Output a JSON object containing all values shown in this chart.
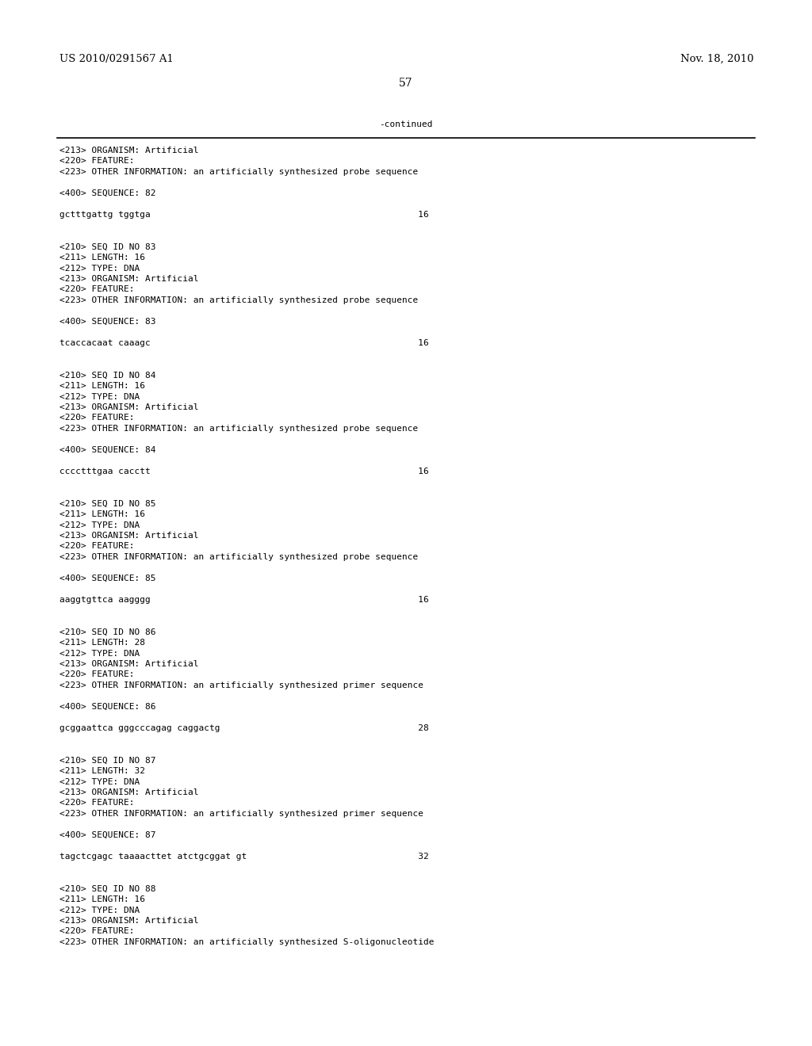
{
  "header_left": "US 2010/0291567 A1",
  "header_right": "Nov. 18, 2010",
  "page_number": "57",
  "continued_label": "-continued",
  "background_color": "#ffffff",
  "text_color": "#000000",
  "font_size_header": 9.5,
  "font_size_body": 8.0,
  "font_size_page": 10.0,
  "lines": [
    "<213> ORGANISM: Artificial",
    "<220> FEATURE:",
    "<223> OTHER INFORMATION: an artificially synthesized probe sequence",
    "",
    "<400> SEQUENCE: 82",
    "",
    "gctttgattg tggtga                                                  16",
    "",
    "",
    "<210> SEQ ID NO 83",
    "<211> LENGTH: 16",
    "<212> TYPE: DNA",
    "<213> ORGANISM: Artificial",
    "<220> FEATURE:",
    "<223> OTHER INFORMATION: an artificially synthesized probe sequence",
    "",
    "<400> SEQUENCE: 83",
    "",
    "tcaccacaat caaagc                                                  16",
    "",
    "",
    "<210> SEQ ID NO 84",
    "<211> LENGTH: 16",
    "<212> TYPE: DNA",
    "<213> ORGANISM: Artificial",
    "<220> FEATURE:",
    "<223> OTHER INFORMATION: an artificially synthesized probe sequence",
    "",
    "<400> SEQUENCE: 84",
    "",
    "cccctttgaa cacctt                                                  16",
    "",
    "",
    "<210> SEQ ID NO 85",
    "<211> LENGTH: 16",
    "<212> TYPE: DNA",
    "<213> ORGANISM: Artificial",
    "<220> FEATURE:",
    "<223> OTHER INFORMATION: an artificially synthesized probe sequence",
    "",
    "<400> SEQUENCE: 85",
    "",
    "aaggtgttca aagggg                                                  16",
    "",
    "",
    "<210> SEQ ID NO 86",
    "<211> LENGTH: 28",
    "<212> TYPE: DNA",
    "<213> ORGANISM: Artificial",
    "<220> FEATURE:",
    "<223> OTHER INFORMATION: an artificially synthesized primer sequence",
    "",
    "<400> SEQUENCE: 86",
    "",
    "gcggaattca gggcccagag caggactg                                     28",
    "",
    "",
    "<210> SEQ ID NO 87",
    "<211> LENGTH: 32",
    "<212> TYPE: DNA",
    "<213> ORGANISM: Artificial",
    "<220> FEATURE:",
    "<223> OTHER INFORMATION: an artificially synthesized primer sequence",
    "",
    "<400> SEQUENCE: 87",
    "",
    "tagctcgagc taaaacttet atctgcggat gt                                32",
    "",
    "",
    "<210> SEQ ID NO 88",
    "<211> LENGTH: 16",
    "<212> TYPE: DNA",
    "<213> ORGANISM: Artificial",
    "<220> FEATURE:",
    "<223> OTHER INFORMATION: an artificially synthesized S-oligonucleotide"
  ]
}
